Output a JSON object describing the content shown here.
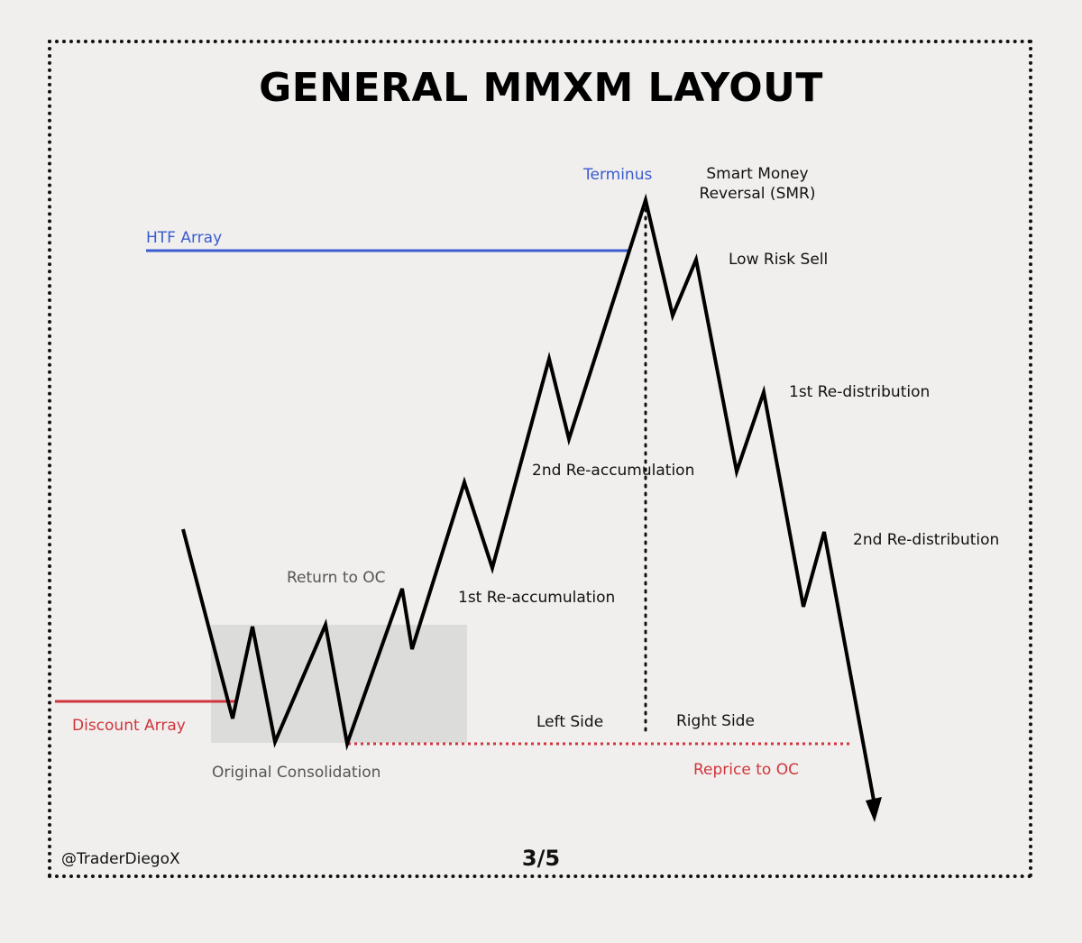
{
  "title": "GENERAL MMXM LAYOUT",
  "labels": {
    "terminus": "Terminus",
    "smr_line1": "Smart Money",
    "smr_line2": "Reversal (SMR)",
    "htf_array": "HTF Array",
    "low_risk_sell": "Low Risk Sell",
    "first_redistribution": "1st Re-distribution",
    "second_reaccumulation": "2nd Re-accumulation",
    "second_redistribution": "2nd Re-distribution",
    "return_to_oc": "Return to OC",
    "first_reaccumulation": "1st Re-accumulation",
    "discount_array": "Discount Array",
    "left_side": "Left Side",
    "right_side": "Right Side",
    "original_consolidation": "Original Consolidation",
    "reprice_to_oc": "Reprice to OC"
  },
  "footer": {
    "credit": "@TraderDiegoX",
    "page": "3/5"
  },
  "colors": {
    "background": "#f0efed",
    "price_path": "#000000",
    "htf_array": "#3a5bcf",
    "discount_array": "#d0353d",
    "reprice_line": "#d0353d",
    "consolidation_box": "#dcdcdb"
  }
}
